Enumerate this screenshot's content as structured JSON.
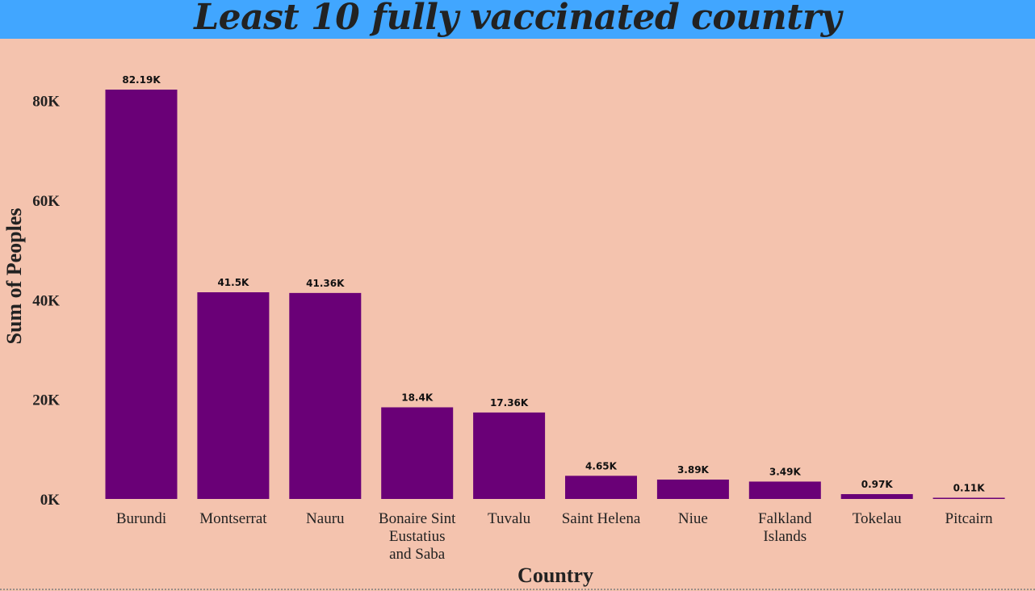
{
  "page": {
    "title": "Least 10 fully vaccinated country"
  },
  "colors": {
    "background": "#f4c3ae",
    "title_bar": "#41a6ff",
    "bar": "#6a0077"
  },
  "chart_data": {
    "type": "bar",
    "title": "Least 10 fully vaccinated country",
    "xlabel": "Country",
    "ylabel": "Sum of Peoples",
    "categories": [
      "Burundi",
      "Montserrat",
      "Nauru",
      "Bonaire Sint Eustatius and Saba",
      "Tuvalu",
      "Saint Helena",
      "Niue",
      "Falkland Islands",
      "Tokelau",
      "Pitcairn"
    ],
    "category_lines": [
      [
        "Burundi"
      ],
      [
        "Montserrat"
      ],
      [
        "Nauru"
      ],
      [
        "Bonaire Sint",
        "Eustatius",
        "and Saba"
      ],
      [
        "Tuvalu"
      ],
      [
        "Saint Helena"
      ],
      [
        "Niue"
      ],
      [
        "Falkland",
        "Islands"
      ],
      [
        "Tokelau"
      ],
      [
        "Pitcairn"
      ]
    ],
    "values": [
      82190,
      41500,
      41360,
      18400,
      17360,
      4650,
      3890,
      3490,
      970,
      110
    ],
    "data_labels": [
      "82.19K",
      "41.5K",
      "41.36K",
      "18.4K",
      "17.36K",
      "4.65K",
      "3.89K",
      "3.49K",
      "0.97K",
      "0.11K"
    ],
    "yticks": [
      0,
      20000,
      40000,
      60000,
      80000
    ],
    "ytick_labels": [
      "0K",
      "20K",
      "40K",
      "60K",
      "80K"
    ],
    "ylim": [
      0,
      82190
    ],
    "grid": false,
    "legend": "none"
  }
}
